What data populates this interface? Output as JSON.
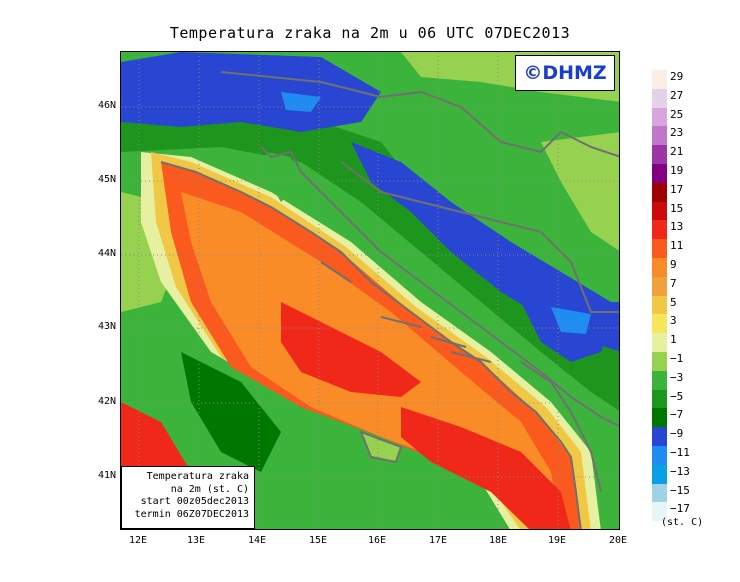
{
  "title": "Temperatura zraka na 2m u 06 UTC 07DEC2013",
  "watermark": "©DHMZ",
  "info_box": {
    "line1": "Temperatura zraka",
    "line2": "na 2m (st. C)",
    "line3": "start 00z05dec2013",
    "line4": "termin 06Z07DEC2013"
  },
  "latitude_ticks": [
    "46N",
    "45N",
    "44N",
    "43N",
    "42N",
    "41N"
  ],
  "longitude_ticks": [
    "12E",
    "13E",
    "14E",
    "15E",
    "16E",
    "17E",
    "18E",
    "19E",
    "20E"
  ],
  "legend": {
    "labels": [
      "29",
      "27",
      "25",
      "23",
      "21",
      "19",
      "17",
      "15",
      "13",
      "11",
      "9",
      "7",
      "5",
      "3",
      "1",
      "−1",
      "−3",
      "−5",
      "−7",
      "−9",
      "−11",
      "−13",
      "−15",
      "−17"
    ],
    "colors": [
      "#fbeee6",
      "#e6d2e8",
      "#d7a6dc",
      "#bf78c8",
      "#9c35a6",
      "#820082",
      "#a00000",
      "#cd0a0a",
      "#f02819",
      "#fa5a1e",
      "#fa8c28",
      "#f0a03c",
      "#f0c846",
      "#f5e65a",
      "#e6f0a0",
      "#96d250",
      "#3cb43c",
      "#1e961e",
      "#007800",
      "#2846d2",
      "#1e8cf0",
      "#0aa0e6",
      "#a0d2e6",
      "#e6f5f5"
    ],
    "units": "(st. C)"
  },
  "map_colors": {
    "sea_warm": "#fa5a1e",
    "sea_mild": "#fa8c28",
    "sea_hot": "#f02819",
    "coast": "#f0c846",
    "coast_light": "#f5e65a",
    "pale": "#e6f0a0",
    "land": "#3cb43c",
    "land_light": "#96d250",
    "land_dark": "#1e961e",
    "forest": "#007800",
    "cold": "#2846d2",
    "colder": "#1e8cf0",
    "borders": "#707070"
  }
}
